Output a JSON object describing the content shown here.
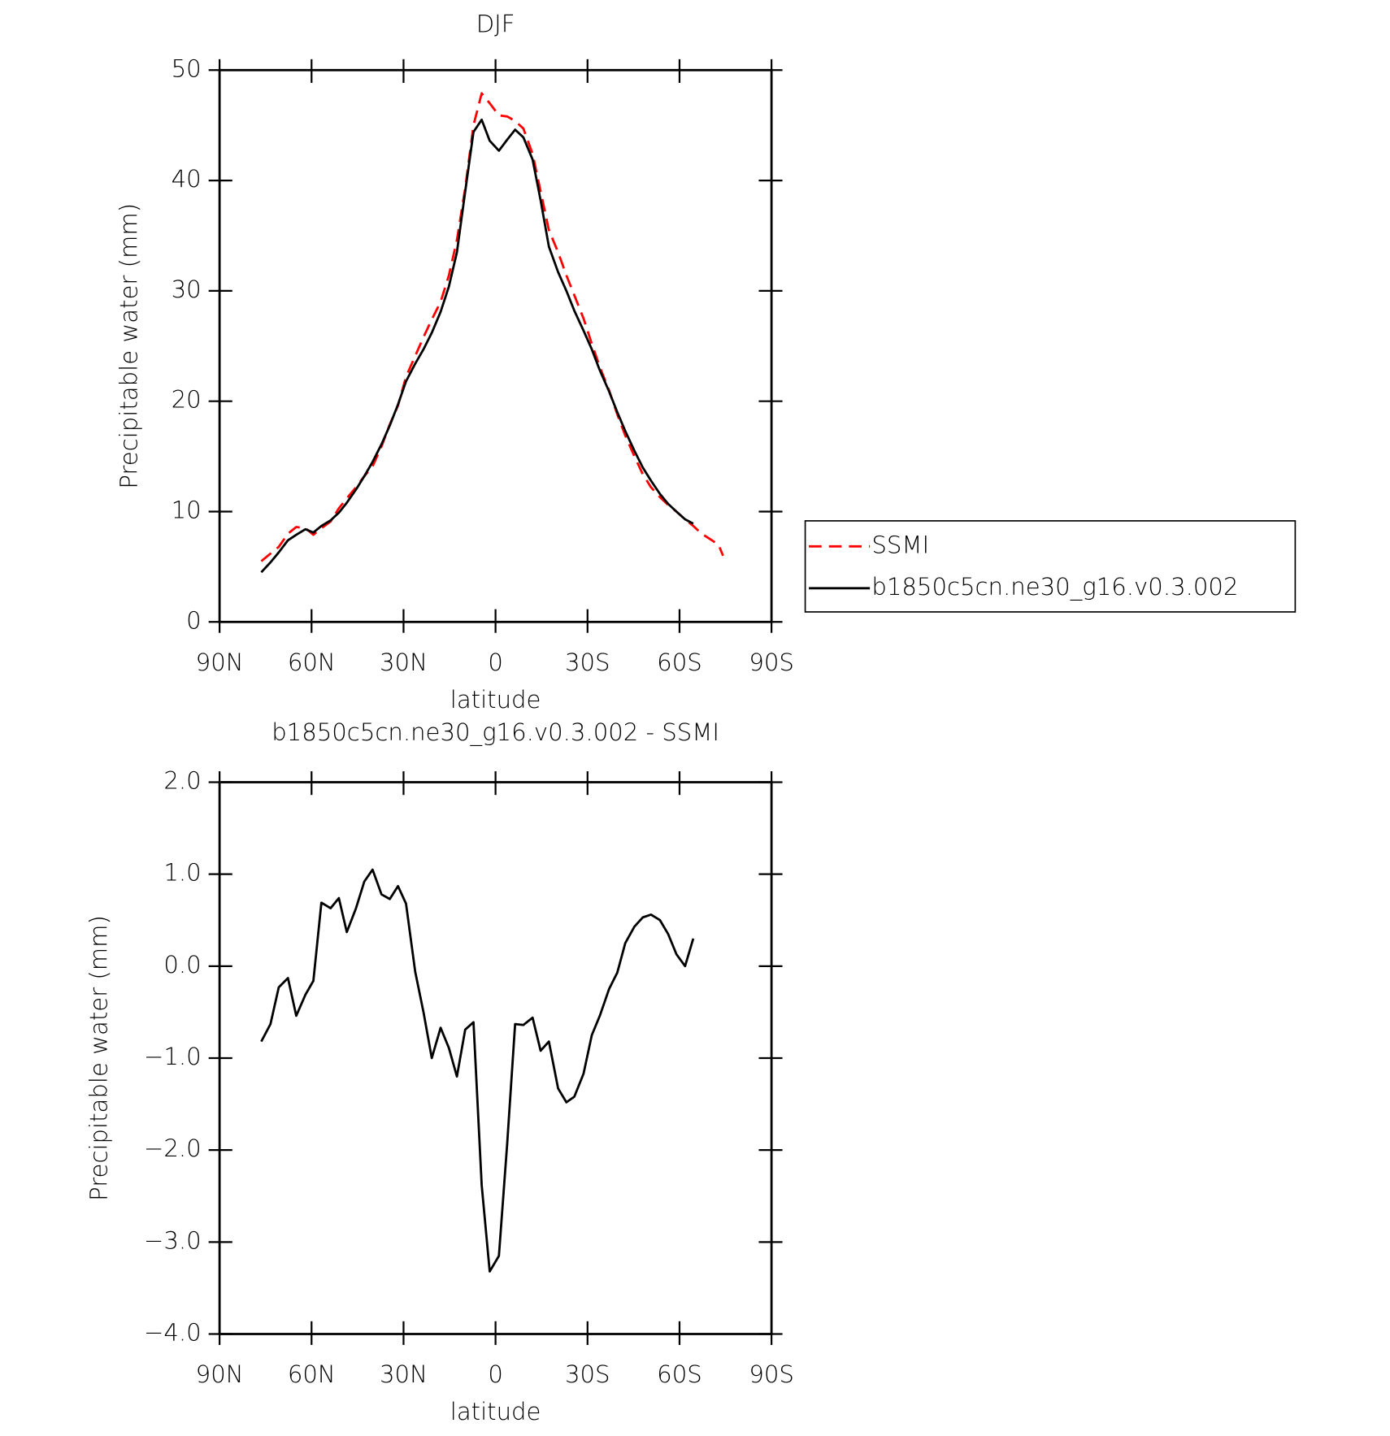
{
  "chart_data": [
    {
      "type": "line",
      "title": "DJF",
      "xlabel": "latitude",
      "ylabel": "Precipitable water (mm)",
      "x": [
        76.4,
        73.4,
        70.7,
        67.7,
        65,
        62,
        59.4,
        56.8,
        53.8,
        51.1,
        48.5,
        45.5,
        42.8,
        40.1,
        37.2,
        34.5,
        31.8,
        29.2,
        26.2,
        23.5,
        20.8,
        17.9,
        15.2,
        12.6,
        9.9,
        7.2,
        4.5,
        1.9,
        -1.1,
        -3.8,
        -6.4,
        -9.1,
        -12.1,
        -14.7,
        -17.4,
        -20.4,
        -23.1,
        -25.7,
        -28.7,
        -31.4,
        -34.0,
        -37.0,
        -39.7,
        -42.3,
        -45.3,
        -48.0,
        -50.7,
        -53.6,
        -56.3,
        -59.0,
        -61.8,
        -64.5,
        -67.2,
        -70.0,
        -72.7,
        -74.2
      ],
      "series": [
        {
          "name": "SSMI",
          "color": "#ff0000",
          "linestyle": "dashed",
          "values": [
            5.5,
            6.2,
            6.8,
            8.0,
            8.6,
            8.5,
            7.9,
            8.5,
            9.1,
            10.3,
            11.2,
            12.2,
            13.2,
            14.1,
            15.9,
            17.9,
            19.6,
            22.2,
            24.1,
            25.8,
            27.4,
            29.0,
            31.4,
            34.6,
            39.3,
            45.0,
            47.9,
            47.0,
            45.9,
            45.8,
            45.4,
            44.7,
            42.4,
            39.0,
            35.5,
            33.5,
            31.4,
            29.6,
            27.5,
            25.2,
            23.1,
            21.0,
            18.8,
            16.9,
            15.0,
            13.4,
            12.2,
            11.3,
            10.6,
            10.0,
            9.3,
            8.7,
            8.0,
            7.5,
            7.0,
            6.0
          ]
        },
        {
          "name": "b1850c5cn.ne30_g16.v0.3.002",
          "color": "#000000",
          "linestyle": "solid",
          "values": [
            4.5,
            5.4,
            6.3,
            7.4,
            7.9,
            8.4,
            8.1,
            8.7,
            9.2,
            9.9,
            10.8,
            12.0,
            13.2,
            14.5,
            16.1,
            17.8,
            19.7,
            21.8,
            23.4,
            24.7,
            26.2,
            28.1,
            30.4,
            33.5,
            39.0,
            44.4,
            45.5,
            43.6,
            42.7,
            43.7,
            44.6,
            43.9,
            41.9,
            38.2,
            34.0,
            31.7,
            30.0,
            28.2,
            26.4,
            24.7,
            22.8,
            20.9,
            19.0,
            17.3,
            15.5,
            14.0,
            12.8,
            11.6,
            10.7,
            10.0,
            9.3,
            8.9,
            null,
            null,
            null,
            null
          ]
        }
      ],
      "xlim": [
        90,
        -90
      ],
      "xticks": [
        {
          "value": 90,
          "label": "90N"
        },
        {
          "value": 60,
          "label": "60N"
        },
        {
          "value": 30,
          "label": "30N"
        },
        0,
        {
          "value": -30,
          "label": "30S"
        },
        {
          "value": -60,
          "label": "60S"
        },
        {
          "value": -90,
          "label": "90S"
        }
      ],
      "ylim": [
        0,
        50
      ],
      "yticks": [
        0,
        10,
        20,
        30,
        40,
        50
      ],
      "legend": "right"
    },
    {
      "type": "line",
      "title": "b1850c5cn.ne30_g16.v0.3.002 - SSMI",
      "xlabel": "latitude",
      "ylabel": "Precipitable water (mm)",
      "x": [
        76.4,
        73.4,
        70.7,
        67.7,
        65,
        62,
        59.4,
        56.8,
        53.8,
        51.1,
        48.5,
        45.5,
        42.8,
        40.1,
        37.2,
        34.5,
        31.8,
        29.2,
        26.2,
        23.5,
        20.8,
        17.9,
        15.2,
        12.6,
        9.9,
        7.2,
        4.5,
        1.9,
        -1.1,
        -3.8,
        -6.4,
        -9.1,
        -12.1,
        -14.7,
        -17.4,
        -20.4,
        -23.1,
        -25.7,
        -28.7,
        -31.4,
        -34.0,
        -37.0,
        -39.7,
        -42.3,
        -45.3,
        -48.0,
        -50.7,
        -53.6,
        -56.3,
        -59.0,
        -61.8,
        -64.5
      ],
      "series": [
        {
          "color": "#000000",
          "linestyle": "solid",
          "values": [
            -0.82,
            -0.63,
            -0.23,
            -0.13,
            -0.54,
            -0.31,
            -0.16,
            0.69,
            0.63,
            0.74,
            0.37,
            0.63,
            0.92,
            1.05,
            0.78,
            0.73,
            0.87,
            0.68,
            -0.06,
            -0.5,
            -1.0,
            -0.67,
            -0.89,
            -1.2,
            -0.69,
            -0.61,
            -2.38,
            -3.32,
            -3.15,
            -1.93,
            -0.63,
            -0.64,
            -0.56,
            -0.92,
            -0.82,
            -1.33,
            -1.48,
            -1.42,
            -1.17,
            -0.75,
            -0.54,
            -0.25,
            -0.07,
            0.25,
            0.43,
            0.53,
            0.56,
            0.5,
            0.35,
            0.13,
            0.0,
            0.3
          ]
        }
      ],
      "xlim": [
        90,
        -90
      ],
      "xticks": [
        {
          "value": 90,
          "label": "90N"
        },
        {
          "value": 60,
          "label": "60N"
        },
        {
          "value": 30,
          "label": "30N"
        },
        0,
        {
          "value": -30,
          "label": "30S"
        },
        {
          "value": -60,
          "label": "60S"
        },
        {
          "value": -90,
          "label": "90S"
        }
      ],
      "ylim": [
        -4,
        2
      ],
      "yticks": [
        {
          "value": -4,
          "label": "−4.0"
        },
        {
          "value": -3,
          "label": "−3.0"
        },
        {
          "value": -2,
          "label": "−2.0"
        },
        {
          "value": -1,
          "label": "−1.0"
        },
        {
          "value": 0,
          "label": "0.0"
        },
        {
          "value": 1,
          "label": "1.0"
        },
        {
          "value": 2,
          "label": "2.0"
        }
      ]
    }
  ]
}
